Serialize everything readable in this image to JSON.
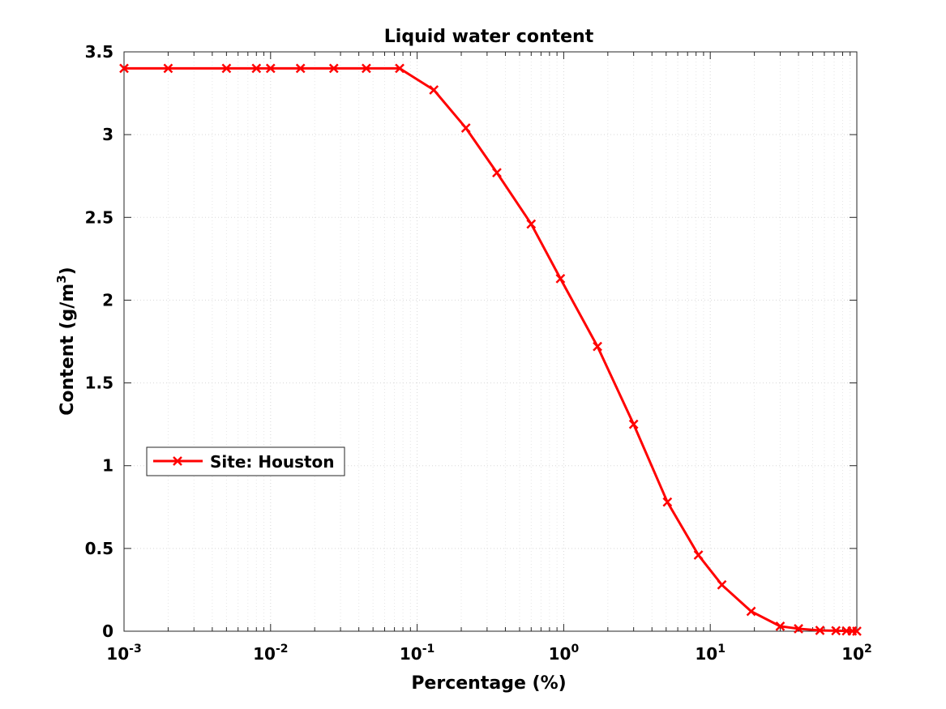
{
  "chart_data": {
    "type": "line",
    "title": "Liquid water content",
    "xlabel": "Percentage (%)",
    "ylabel": "Content (g/m",
    "ylabel_superscript": "3",
    "ylabel_suffix": ")",
    "xscale": "log",
    "xlim": [
      0.001,
      100
    ],
    "ylim": [
      0,
      3.5
    ],
    "grid": "on (major and minor, dotted)",
    "legend_location": "left, lower-middle",
    "x_ticks": [
      {
        "base": "10",
        "exp": "-3",
        "value": 0.001
      },
      {
        "base": "10",
        "exp": "-2",
        "value": 0.01
      },
      {
        "base": "10",
        "exp": "-1",
        "value": 0.1
      },
      {
        "base": "10",
        "exp": "0",
        "value": 1
      },
      {
        "base": "10",
        "exp": "1",
        "value": 10
      },
      {
        "base": "10",
        "exp": "2",
        "value": 100
      }
    ],
    "y_ticks": [
      "0",
      "0.5",
      "1",
      "1.5",
      "2",
      "2.5",
      "3",
      "3.5"
    ],
    "series": [
      {
        "name": "Site: Houston",
        "color": "#ff0000",
        "marker": "x",
        "x": [
          0.001,
          0.002,
          0.005,
          0.008,
          0.01,
          0.016,
          0.027,
          0.045,
          0.076,
          0.13,
          0.215,
          0.35,
          0.6,
          0.95,
          1.7,
          3.0,
          5.1,
          8.3,
          12.0,
          19.0,
          30.0,
          40.0,
          56.0,
          72.0,
          85.0,
          93.0,
          100.0
        ],
        "y": [
          3.4,
          3.4,
          3.4,
          3.4,
          3.4,
          3.4,
          3.4,
          3.4,
          3.4,
          3.27,
          3.04,
          2.77,
          2.46,
          2.13,
          1.72,
          1.25,
          0.78,
          0.46,
          0.28,
          0.12,
          0.03,
          0.015,
          0.005,
          0.003,
          0.002,
          0.001,
          0.0
        ]
      }
    ]
  }
}
